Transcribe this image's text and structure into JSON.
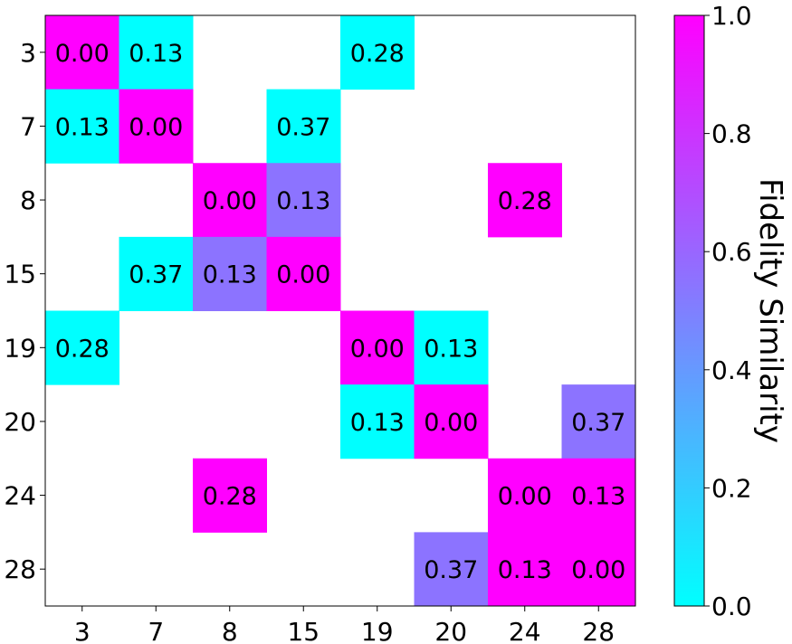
{
  "chart_data": {
    "type": "heatmap",
    "x_labels": [
      "3",
      "7",
      "8",
      "15",
      "19",
      "20",
      "24",
      "28"
    ],
    "y_labels": [
      "3",
      "7",
      "8",
      "15",
      "19",
      "20",
      "24",
      "28"
    ],
    "cells": [
      {
        "row": 0,
        "col": 0,
        "label": "0.00",
        "color_value": 1.0
      },
      {
        "row": 0,
        "col": 1,
        "label": "0.13",
        "color_value": 0.0
      },
      {
        "row": 0,
        "col": 4,
        "label": "0.28",
        "color_value": 0.0
      },
      {
        "row": 1,
        "col": 0,
        "label": "0.13",
        "color_value": 0.0
      },
      {
        "row": 1,
        "col": 1,
        "label": "0.00",
        "color_value": 1.0
      },
      {
        "row": 1,
        "col": 3,
        "label": "0.37",
        "color_value": 0.0
      },
      {
        "row": 2,
        "col": 2,
        "label": "0.00",
        "color_value": 1.0
      },
      {
        "row": 2,
        "col": 3,
        "label": "0.13",
        "color_value": 0.55
      },
      {
        "row": 2,
        "col": 6,
        "label": "0.28",
        "color_value": 1.0
      },
      {
        "row": 3,
        "col": 1,
        "label": "0.37",
        "color_value": 0.0
      },
      {
        "row": 3,
        "col": 2,
        "label": "0.13",
        "color_value": 0.55
      },
      {
        "row": 3,
        "col": 3,
        "label": "0.00",
        "color_value": 1.0
      },
      {
        "row": 4,
        "col": 0,
        "label": "0.28",
        "color_value": 0.0
      },
      {
        "row": 4,
        "col": 4,
        "label": "0.00",
        "color_value": 1.0
      },
      {
        "row": 4,
        "col": 5,
        "label": "0.13",
        "color_value": 0.0
      },
      {
        "row": 5,
        "col": 4,
        "label": "0.13",
        "color_value": 0.0
      },
      {
        "row": 5,
        "col": 5,
        "label": "0.00",
        "color_value": 1.0
      },
      {
        "row": 5,
        "col": 7,
        "label": "0.37",
        "color_value": 0.55
      },
      {
        "row": 6,
        "col": 2,
        "label": "0.28",
        "color_value": 1.0
      },
      {
        "row": 6,
        "col": 6,
        "label": "0.00",
        "color_value": 1.0
      },
      {
        "row": 6,
        "col": 7,
        "label": "0.13",
        "color_value": 1.0
      },
      {
        "row": 7,
        "col": 5,
        "label": "0.37",
        "color_value": 0.55
      },
      {
        "row": 7,
        "col": 6,
        "label": "0.13",
        "color_value": 1.0
      },
      {
        "row": 7,
        "col": 7,
        "label": "0.00",
        "color_value": 1.0
      }
    ],
    "colormap": "cool",
    "colormap_start": "#00ffff",
    "colormap_end": "#ff00ff",
    "colorbar": {
      "label": "Fidelity Similarity",
      "range": [
        0.0,
        1.0
      ],
      "ticks": [
        "0.0",
        "0.2",
        "0.4",
        "0.6",
        "0.8",
        "1.0"
      ]
    },
    "grid": false,
    "legend_placement": "right"
  }
}
